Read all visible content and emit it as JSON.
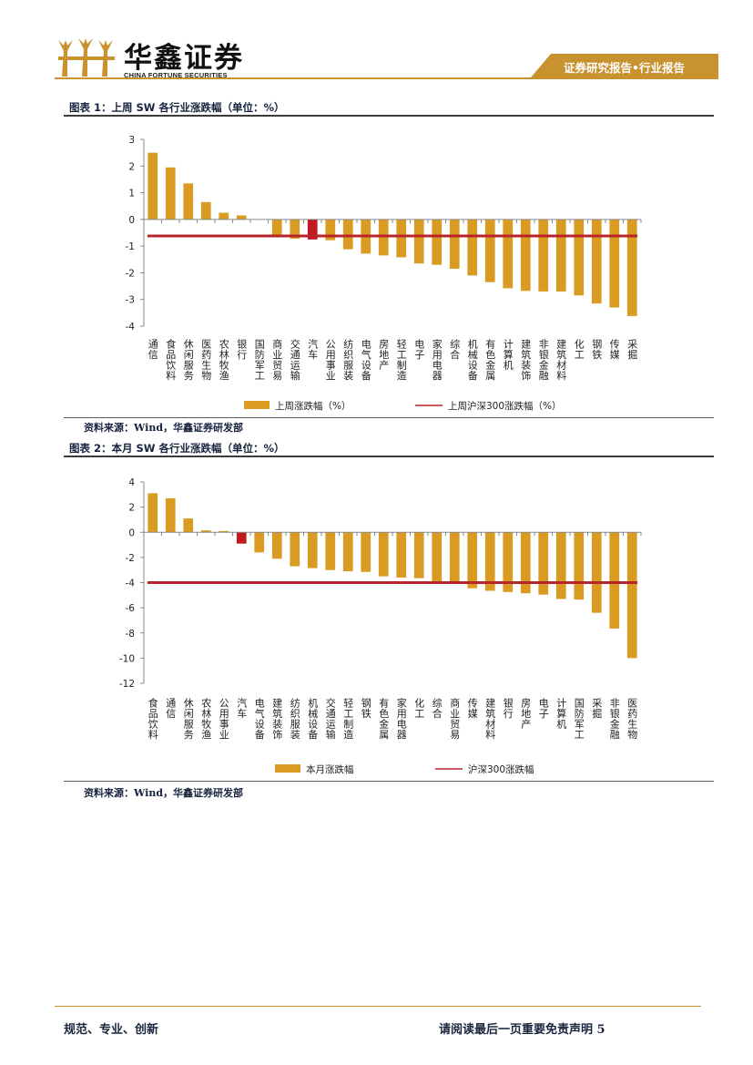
{
  "header": {
    "company_cn": "华鑫证券",
    "company_en": "CHINA FORTUNE SECURITIES",
    "banner": "证券研究报告•行业报告"
  },
  "colors": {
    "bar": "#d99b21",
    "highlight_bar": "#c0191f",
    "benchmark_line": "#b8242b",
    "accent": "#c8922e"
  },
  "charts": [
    {
      "title": "图表 1：上周 SW 各行业涨跌幅（单位：%）",
      "source": "资料来源：Wind，华鑫证券研发部"
    },
    {
      "title": "图表 2：本月 SW 各行业涨跌幅（单位：%）",
      "source": "资料来源：Wind，华鑫证券研发部"
    }
  ],
  "chart_data": [
    {
      "type": "bar",
      "title": "上周 SW 各行业涨跌幅（单位：%）",
      "categories": [
        "通信",
        "食品饮料",
        "休闲服务",
        "医药生物",
        "农林牧渔",
        "银行",
        "国防军工",
        "商业贸易",
        "交通运输",
        "汽车",
        "公用事业",
        "纺织服装",
        "电气设备",
        "房地产",
        "轻工制造",
        "电子",
        "家用电器",
        "综合",
        "机械设备",
        "有色金属",
        "计算机",
        "建筑装饰",
        "非银金融",
        "建筑材料",
        "化工",
        "钢铁",
        "传媒",
        "采掘"
      ],
      "values": [
        2.5,
        1.95,
        1.35,
        0.65,
        0.25,
        0.15,
        0.0,
        -0.62,
        -0.72,
        -0.75,
        -0.78,
        -1.12,
        -1.28,
        -1.35,
        -1.42,
        -1.65,
        -1.7,
        -1.85,
        -2.1,
        -2.35,
        -2.58,
        -2.68,
        -2.7,
        -2.7,
        -2.85,
        -3.15,
        -3.3,
        -3.62
      ],
      "highlight_index": 9,
      "benchmark": {
        "name": "上周沪深300涨跌幅（%）",
        "value": -0.62
      },
      "legend": [
        "上周涨跌幅（%）",
        "上周沪深300涨跌幅（%）"
      ],
      "ylim": [
        -4,
        3
      ],
      "yticks": [
        3,
        2,
        1,
        0,
        -1,
        -2,
        -3,
        -4
      ],
      "legend_position": "bottom"
    },
    {
      "type": "bar",
      "title": "本月 SW 各行业涨跌幅（单位：%）",
      "categories": [
        "食品饮料",
        "通信",
        "休闲服务",
        "农林牧渔",
        "公用事业",
        "汽车",
        "电气设备",
        "建筑装饰",
        "纺织服装",
        "机械设备",
        "交通运输",
        "轻工制造",
        "钢铁",
        "有色金属",
        "家用电器",
        "化工",
        "综合",
        "商业贸易",
        "传媒",
        "建筑材料",
        "银行",
        "房地产",
        "电子",
        "计算机",
        "国防军工",
        "采掘",
        "非银金融",
        "医药生物"
      ],
      "values": [
        3.1,
        2.7,
        1.1,
        0.15,
        0.1,
        -0.9,
        -1.6,
        -2.1,
        -2.7,
        -2.85,
        -3.0,
        -3.1,
        -3.15,
        -3.5,
        -3.6,
        -3.65,
        -3.95,
        -4.1,
        -4.45,
        -4.65,
        -4.75,
        -4.85,
        -4.95,
        -5.3,
        -5.35,
        -6.4,
        -7.65,
        -10.0
      ],
      "highlight_index": 5,
      "benchmark": {
        "name": "沪深300涨跌幅",
        "value": -4.0
      },
      "legend": [
        "本月涨跌幅",
        "沪深300涨跌幅"
      ],
      "ylim": [
        -12,
        4
      ],
      "yticks": [
        4,
        2,
        0,
        -2,
        -4,
        -6,
        -8,
        -10,
        -12
      ],
      "legend_position": "bottom"
    }
  ],
  "footer": {
    "left": "规范、专业、创新",
    "right": "请阅读最后一页重要免责声明 5"
  }
}
